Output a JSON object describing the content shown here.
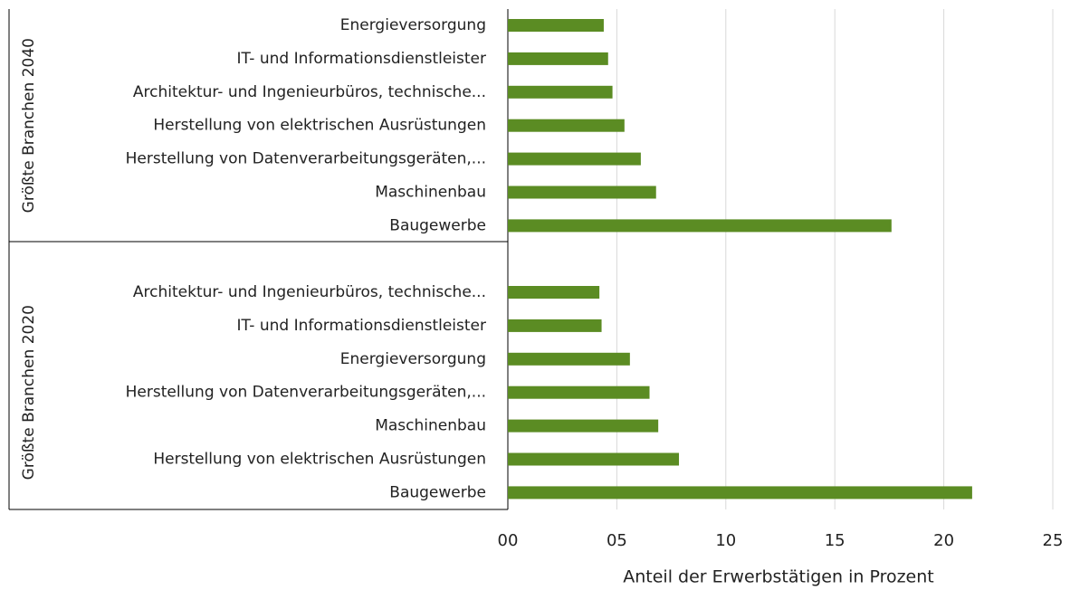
{
  "chart_data": {
    "type": "bar",
    "orientation": "horizontal",
    "color": "#5b8c23",
    "xlabel": "Anteil der Erwerbstätigen in Prozent",
    "groups": [
      {
        "name": "Größte Branchen 2040",
        "categories": [
          "Energieversorgung",
          "IT- und Informationsdienstleister",
          "Architektur- und Ingenieurbüros, technische...",
          "Herstellung von elektrischen Ausrüstungen",
          "Herstellung von Datenverarbeitungsgeräten,...",
          "Maschinenbau",
          "Baugewerbe"
        ],
        "values": [
          4.4,
          4.6,
          4.8,
          5.35,
          6.1,
          6.8,
          17.6
        ]
      },
      {
        "name": "Größte Branchen 2020",
        "categories": [
          "Architektur- und Ingenieurbüros, technische...",
          "IT- und Informationsdienstleister",
          "Energieversorgung",
          "Herstellung von Datenverarbeitungsgeräten,...",
          "Maschinenbau",
          "Herstellung von elektrischen Ausrüstungen",
          "Baugewerbe"
        ],
        "values": [
          4.2,
          4.3,
          5.6,
          6.5,
          6.9,
          7.85,
          21.3
        ]
      }
    ],
    "xlim": [
      0,
      25
    ],
    "xticks": [
      {
        "value": 0,
        "label": "00"
      },
      {
        "value": 5,
        "label": "05"
      },
      10,
      15,
      20,
      25
    ],
    "grid": true
  }
}
